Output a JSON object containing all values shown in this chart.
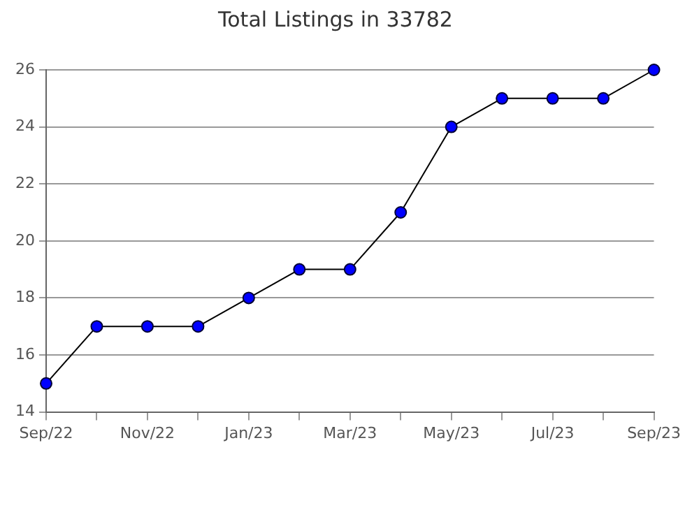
{
  "chart_data": {
    "type": "line",
    "title": "Total Listings in 33782",
    "categories": [
      "Sep/22",
      null,
      "Nov/22",
      null,
      "Jan/23",
      null,
      "Mar/23",
      null,
      "May/23",
      null,
      "Jul/23",
      null,
      "Sep/23"
    ],
    "series": [
      {
        "color": "#0000ff",
        "values": [
          15,
          17,
          17,
          17,
          18,
          19,
          19,
          21,
          24,
          25,
          25,
          25,
          26
        ]
      }
    ],
    "ylim": [
      14,
      26
    ],
    "yticks": [
      14,
      16,
      18,
      20,
      22,
      24,
      26
    ],
    "grid": "y",
    "legend": false,
    "marker": "circle",
    "line_style": "solid"
  }
}
